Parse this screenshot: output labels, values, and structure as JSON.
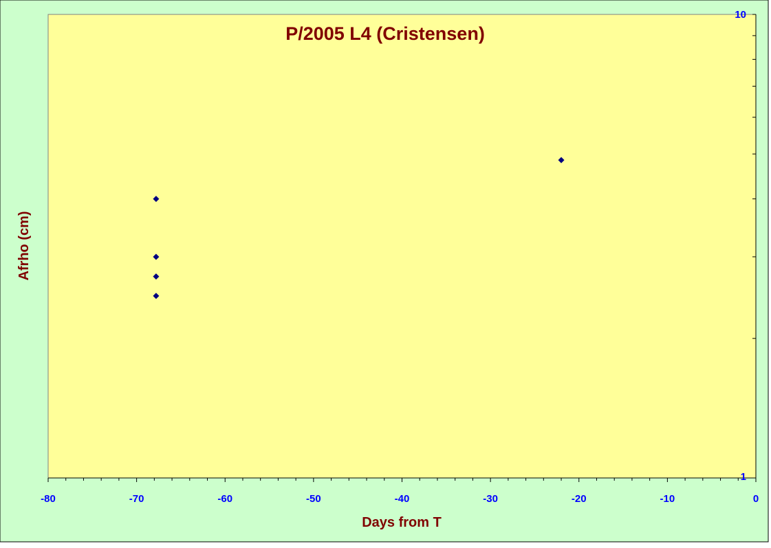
{
  "chart_data": {
    "type": "scatter",
    "title": "P/2005 L4 (Cristensen)",
    "xlabel": "Days from T",
    "ylabel": "Afrho (cm)",
    "xlim": [
      -80,
      0
    ],
    "ylim": [
      1,
      10
    ],
    "y_scale": "log",
    "x_ticks": [
      "-80",
      "-70",
      "-60",
      "-50",
      "-40",
      "-30",
      "-20",
      "-10",
      "0"
    ],
    "y_tick_labels": [
      "10",
      "1"
    ],
    "grid": false,
    "legend": "none",
    "marker": "diamond",
    "series": [
      {
        "x": [
          -67.8,
          -67.8,
          -67.8,
          -67.8,
          -22.0
        ],
        "y": [
          4.0,
          3.0,
          2.72,
          2.47,
          4.85
        ]
      }
    ],
    "colors": {
      "outer_background": "#ccffcc",
      "plot_background": "#ffff99",
      "title_color": "#800000",
      "axis_label_color": "#800000",
      "tick_label_color": "#0000ff",
      "marker_color": "#000080",
      "axis_color": "#000000"
    }
  }
}
